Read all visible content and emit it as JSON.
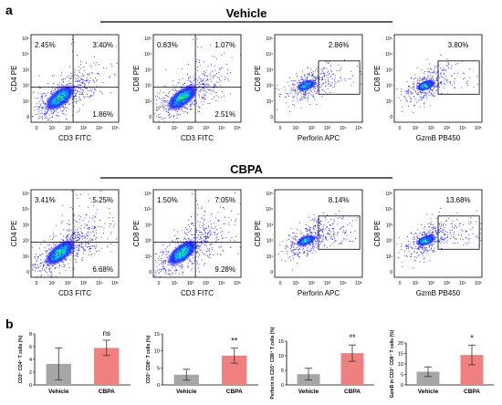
{
  "figure": {
    "panel_a_label": "a",
    "panel_b_label": "b",
    "group_vehicle": "Vehicle",
    "group_cbpa": "CBPA"
  },
  "colors": {
    "vehicle_bar": "#a6a6a6",
    "cbpa_bar": "#f08080",
    "density_low": "#1a1aff",
    "density_mid": "#00d0ff",
    "density_high": "#33ff33"
  },
  "flow": {
    "tick_labels": [
      "0",
      "10¹",
      "10²",
      "10³",
      "10⁴",
      "10⁵"
    ],
    "plots": [
      {
        "group": "vehicle",
        "kind": "quadrant",
        "xlabel": "CD3 FITC",
        "ylabel": "CD4 PE",
        "q_ul": "2.45%",
        "q_ur": "3.40%",
        "q_lr": "1.86%"
      },
      {
        "group": "vehicle",
        "kind": "quadrant",
        "xlabel": "CD3 FITC",
        "ylabel": "CD8 PE",
        "q_ul": "0.83%",
        "q_ur": "1.07%",
        "q_lr": "2.51%"
      },
      {
        "group": "vehicle",
        "kind": "gate",
        "xlabel": "Perforin APC",
        "ylabel": "CD8 PE",
        "gate": "2.86%"
      },
      {
        "group": "vehicle",
        "kind": "gate",
        "xlabel": "GzmB PB450",
        "ylabel": "CD8 PE",
        "gate": "3.80%"
      },
      {
        "group": "cbpa",
        "kind": "quadrant",
        "xlabel": "CD3 FITC",
        "ylabel": "CD4 PE",
        "q_ul": "3.41%",
        "q_ur": "5.25%",
        "q_lr": "6.68%"
      },
      {
        "group": "cbpa",
        "kind": "quadrant",
        "xlabel": "CD3 FITC",
        "ylabel": "CD8 PE",
        "q_ul": "1.50%",
        "q_ur": "7.05%",
        "q_lr": "9.28%"
      },
      {
        "group": "cbpa",
        "kind": "gate",
        "xlabel": "Perforin APC",
        "ylabel": "CD8 PE",
        "gate": "8.14%"
      },
      {
        "group": "cbpa",
        "kind": "gate",
        "xlabel": "GzmB PB450",
        "ylabel": "CD8 PE",
        "gate": "13.68%"
      }
    ]
  },
  "chart_data": [
    {
      "type": "bar",
      "ylabel": "CD3⁺ CD4⁺ T cells (%)",
      "categories": [
        "Vehicle",
        "CBPA"
      ],
      "values": [
        3.3,
        5.8
      ],
      "errors": [
        2.5,
        1.2
      ],
      "ylim": [
        0,
        8
      ],
      "yticks": [
        0,
        2,
        4,
        6,
        8
      ],
      "significance": "ns"
    },
    {
      "type": "bar",
      "ylabel": "CD3⁺ CD8⁺ T cells (%)",
      "categories": [
        "Vehicle",
        "CBPA"
      ],
      "values": [
        3.0,
        8.6
      ],
      "errors": [
        1.6,
        2.2
      ],
      "ylim": [
        0,
        15
      ],
      "yticks": [
        0,
        5,
        10,
        15
      ],
      "significance": "**"
    },
    {
      "type": "bar",
      "ylabel": "Perforin in CD3⁺ CD8⁺ T cells (%)",
      "categories": [
        "Vehicle",
        "CBPA"
      ],
      "values": [
        3.7,
        10.9
      ],
      "errors": [
        2.0,
        2.8
      ],
      "ylim": [
        0,
        15
      ],
      "yticks": [
        0,
        5,
        10,
        15
      ],
      "significance": "**"
    },
    {
      "type": "bar",
      "ylabel": "GzmB in CD3⁺ CD8⁺ T cells (%)",
      "categories": [
        "Vehicle",
        "CBPA"
      ],
      "values": [
        6.3,
        14.3
      ],
      "errors": [
        2.3,
        4.7
      ],
      "ylim": [
        0,
        20
      ],
      "yticks": [
        0,
        5,
        10,
        15,
        20
      ],
      "significance": "*"
    }
  ]
}
